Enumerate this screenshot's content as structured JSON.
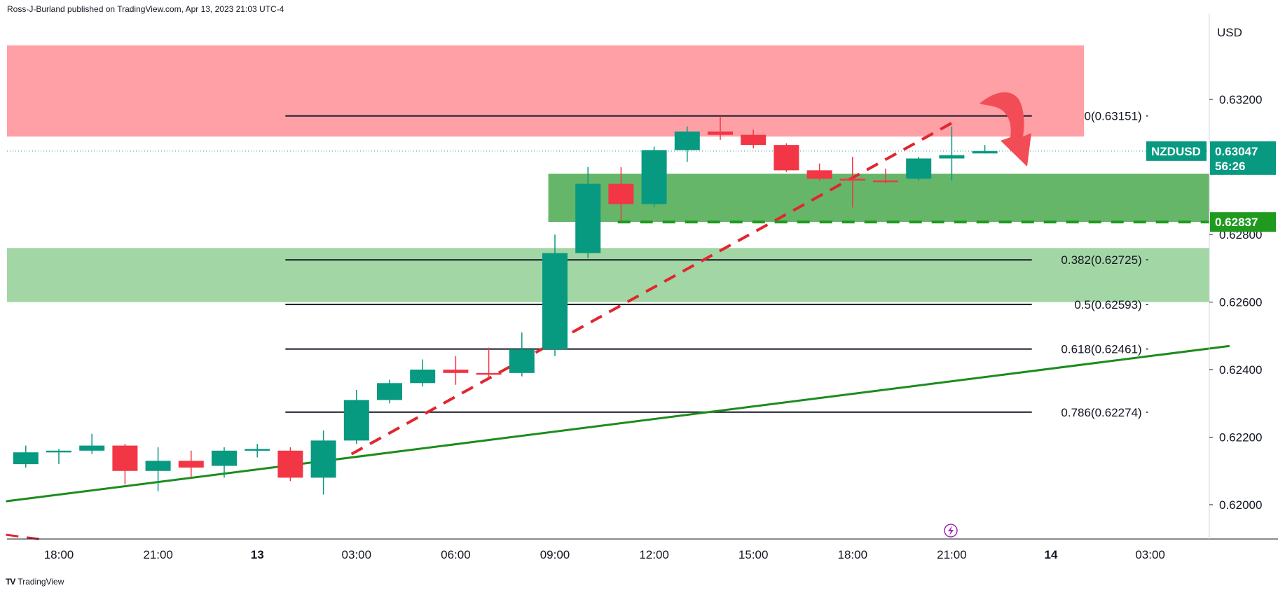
{
  "header": {
    "published_text": "Ross-J-Burland published on TradingView.com, Apr 13, 2023 21:03 UTC-4"
  },
  "footer": {
    "brand_mark": "TV",
    "brand": "TradingView"
  },
  "chart_data": {
    "type": "candlestick",
    "symbol": "NZDUSD",
    "currency": "USD",
    "ylim": [
      0.6191,
      0.6339
    ],
    "grid": false,
    "y_ticks": [
      "0.62000",
      "0.62200",
      "0.62400",
      "0.62600",
      "0.62800",
      "0.63200"
    ],
    "x_ticks": [
      {
        "label": "18:00",
        "t": 0,
        "bold": false
      },
      {
        "label": "21:00",
        "t": 3,
        "bold": false
      },
      {
        "label": "13",
        "t": 6,
        "bold": true
      },
      {
        "label": "03:00",
        "t": 9,
        "bold": false
      },
      {
        "label": "06:00",
        "t": 12,
        "bold": false
      },
      {
        "label": "09:00",
        "t": 15,
        "bold": false
      },
      {
        "label": "12:00",
        "t": 18,
        "bold": false
      },
      {
        "label": "15:00",
        "t": 21,
        "bold": false
      },
      {
        "label": "18:00",
        "t": 24,
        "bold": false
      },
      {
        "label": "21:00",
        "t": 27,
        "bold": false
      },
      {
        "label": "14",
        "t": 30,
        "bold": true
      },
      {
        "label": "03:00",
        "t": 33,
        "bold": false
      }
    ],
    "candles": [
      {
        "t": -1,
        "o": 0.6212,
        "h": 0.62175,
        "l": 0.6211,
        "c": 0.62155
      },
      {
        "t": 0,
        "o": 0.62155,
        "h": 0.62165,
        "l": 0.6212,
        "c": 0.6216
      },
      {
        "t": 1,
        "o": 0.6216,
        "h": 0.6221,
        "l": 0.6215,
        "c": 0.62175
      },
      {
        "t": 2,
        "o": 0.62175,
        "h": 0.6218,
        "l": 0.6206,
        "c": 0.621
      },
      {
        "t": 3,
        "o": 0.621,
        "h": 0.6217,
        "l": 0.6204,
        "c": 0.6213
      },
      {
        "t": 4,
        "o": 0.6213,
        "h": 0.6216,
        "l": 0.6208,
        "c": 0.6211
      },
      {
        "t": 5,
        "o": 0.62115,
        "h": 0.6217,
        "l": 0.6208,
        "c": 0.6216
      },
      {
        "t": 6,
        "o": 0.6216,
        "h": 0.6218,
        "l": 0.6214,
        "c": 0.62165
      },
      {
        "t": 7,
        "o": 0.6216,
        "h": 0.6217,
        "l": 0.6207,
        "c": 0.6208
      },
      {
        "t": 8,
        "o": 0.6208,
        "h": 0.6222,
        "l": 0.6203,
        "c": 0.6219
      },
      {
        "t": 9,
        "o": 0.6219,
        "h": 0.6234,
        "l": 0.6218,
        "c": 0.6231
      },
      {
        "t": 10,
        "o": 0.6231,
        "h": 0.6237,
        "l": 0.623,
        "c": 0.6236
      },
      {
        "t": 11,
        "o": 0.6236,
        "h": 0.6243,
        "l": 0.6235,
        "c": 0.624
      },
      {
        "t": 12,
        "o": 0.624,
        "h": 0.6244,
        "l": 0.62355,
        "c": 0.6239
      },
      {
        "t": 13,
        "o": 0.6239,
        "h": 0.62465,
        "l": 0.62375,
        "c": 0.62385
      },
      {
        "t": 14,
        "o": 0.6239,
        "h": 0.6251,
        "l": 0.6238,
        "c": 0.6246
      },
      {
        "t": 15,
        "o": 0.6246,
        "h": 0.628,
        "l": 0.6244,
        "c": 0.62745
      },
      {
        "t": 16,
        "o": 0.62745,
        "h": 0.63,
        "l": 0.6273,
        "c": 0.6295
      },
      {
        "t": 17,
        "o": 0.6295,
        "h": 0.63,
        "l": 0.6284,
        "c": 0.6289
      },
      {
        "t": 18,
        "o": 0.6289,
        "h": 0.6306,
        "l": 0.6288,
        "c": 0.6305
      },
      {
        "t": 19,
        "o": 0.6305,
        "h": 0.6312,
        "l": 0.63015,
        "c": 0.63105
      },
      {
        "t": 20,
        "o": 0.63105,
        "h": 0.6315,
        "l": 0.6308,
        "c": 0.63095
      },
      {
        "t": 21,
        "o": 0.63095,
        "h": 0.6311,
        "l": 0.63055,
        "c": 0.63065
      },
      {
        "t": 22,
        "o": 0.63065,
        "h": 0.6307,
        "l": 0.62985,
        "c": 0.6299
      },
      {
        "t": 23,
        "o": 0.6299,
        "h": 0.6301,
        "l": 0.6296,
        "c": 0.62965
      },
      {
        "t": 24,
        "o": 0.62965,
        "h": 0.6303,
        "l": 0.6288,
        "c": 0.62962
      },
      {
        "t": 25,
        "o": 0.6296,
        "h": 0.62995,
        "l": 0.62952,
        "c": 0.62955
      },
      {
        "t": 26,
        "o": 0.62965,
        "h": 0.6303,
        "l": 0.6296,
        "c": 0.63025
      },
      {
        "t": 27,
        "o": 0.63025,
        "h": 0.6312,
        "l": 0.6296,
        "c": 0.63035
      },
      {
        "t": 28,
        "o": 0.6304,
        "h": 0.63065,
        "l": 0.6304,
        "c": 0.63047
      }
    ],
    "fib_levels": [
      {
        "label": "0(0.63151)",
        "value": 0.63151
      },
      {
        "label": "0.382(0.62725)",
        "value": 0.62725
      },
      {
        "label": "0.5(0.62593)",
        "value": 0.62593
      },
      {
        "label": "0.618(0.62461)",
        "value": 0.62461
      },
      {
        "label": "0.786(0.62274)",
        "value": 0.62274
      }
    ],
    "fib_t_start": 6.85,
    "fib_t_end": 32.6,
    "zones": [
      {
        "name": "resistance",
        "y1": 0.6309,
        "y2": 0.6336,
        "t1": -1.6,
        "t2": 31.0,
        "color": "#ff9fa6"
      },
      {
        "name": "support",
        "y1": 0.62837,
        "y2": 0.6298,
        "t1": 14.8,
        "t2": 35.4,
        "color": "#66b66a"
      },
      {
        "name": "lower-support",
        "y1": 0.626,
        "y2": 0.6276,
        "t1": -1.6,
        "t2": 35.4,
        "color": "#a3d6a5"
      }
    ],
    "support_dashed_level": 0.62837,
    "trendline_solid": {
      "p1": {
        "t": -1.6,
        "v": 0.6201
      },
      "p2": {
        "t": 35.4,
        "v": 0.6247
      },
      "color": "#1c8c1c"
    },
    "trendline_dashed": {
      "p1": {
        "t": 8.85,
        "v": 0.6215
      },
      "p2": {
        "t": 27.0,
        "v": 0.6313
      },
      "color": "#e0262f"
    },
    "trendline_dashed_lower": {
      "p1": {
        "t": -1.6,
        "v": 0.6191
      },
      "p2": {
        "t": -0.6,
        "v": 0.619
      },
      "color": "#e0262f"
    },
    "last_price": {
      "symbol": "NZDUSD",
      "price": "0.63047",
      "countdown": "56:26",
      "value": 0.63047,
      "color": "#089981"
    },
    "support_tag": {
      "price": "0.62837",
      "value": 0.62837,
      "color": "#1f9a1f"
    },
    "arrow": {
      "color": "#f24d57",
      "direction": "down"
    },
    "colors": {
      "up": "#089981",
      "down": "#f23645"
    }
  }
}
